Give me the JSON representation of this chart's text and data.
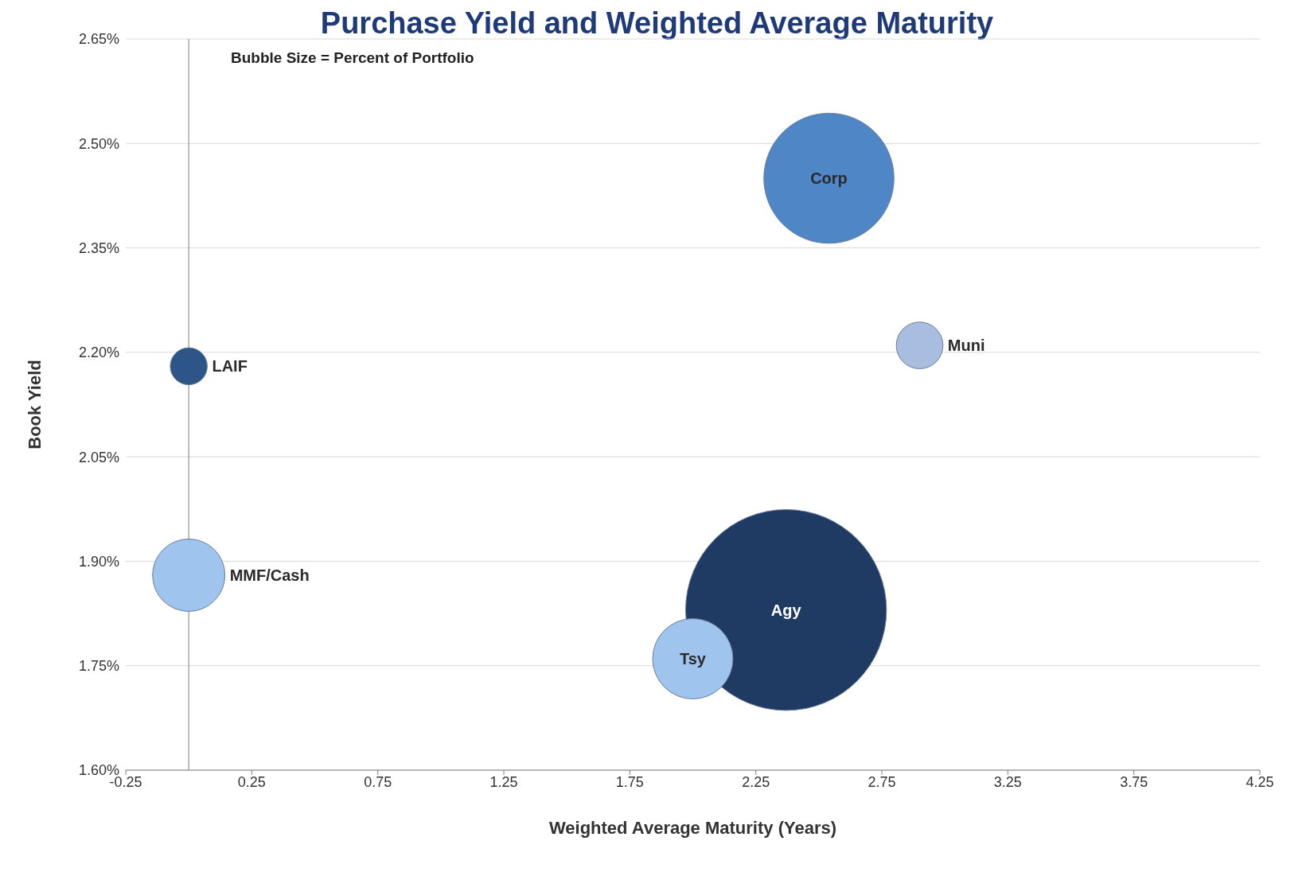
{
  "chart_data": {
    "type": "bubble",
    "title": "Purchase Yield and Weighted Average Maturity",
    "xlabel": "Weighted Average Maturity (Years)",
    "ylabel": "Book Yield",
    "annotations": [
      "Bubble Size = Percent of Portfolio"
    ],
    "series": [
      {
        "name": "LAIF",
        "color": "#2e5588",
        "x": [
          0.0
        ],
        "values": [
          2.18
        ],
        "sizes": [
          0.034
        ]
      },
      {
        "name": "MMF/Cash",
        "color": "#9fc4ee",
        "x": [
          0.0
        ],
        "values": [
          1.88
        ],
        "sizes": [
          0.13
        ]
      },
      {
        "name": "Corp",
        "color": "#4f86c6",
        "x": [
          2.54
        ],
        "values": [
          2.45
        ],
        "sizes": [
          0.42
        ]
      },
      {
        "name": "Muni",
        "color": "#a9bde0",
        "x": [
          2.9
        ],
        "values": [
          2.21
        ],
        "sizes": [
          0.054
        ]
      },
      {
        "name": "Agy",
        "color": "#1f3a63",
        "x": [
          2.37
        ],
        "values": [
          1.83
        ],
        "sizes": [
          1
        ]
      },
      {
        "name": "Tsy",
        "color": "#9fc4ee",
        "x": [
          2.0
        ],
        "values": [
          1.76
        ],
        "sizes": [
          0.16
        ]
      }
    ],
    "xlim": [
      -0.25,
      4.25
    ],
    "xticks": [
      -0.25,
      0.25,
      0.75,
      1.25,
      1.75,
      2.25,
      2.75,
      3.25,
      3.75,
      4.25
    ],
    "ylim": [
      1.6,
      2.65
    ],
    "yticks": [
      {
        "value": 1.6,
        "label": "1.60%"
      },
      {
        "value": 1.75,
        "label": "1.75%"
      },
      {
        "value": 1.9,
        "label": "1.90%"
      },
      {
        "value": 2.05,
        "label": "2.05%"
      },
      {
        "value": 2.2,
        "label": "2.20%"
      },
      {
        "value": 2.35,
        "label": "2.35%"
      },
      {
        "value": 2.5,
        "label": "2.50%"
      },
      {
        "value": 2.65,
        "label": "2.65%"
      }
    ],
    "grid": "y",
    "legend": false,
    "ref_lines": [
      {
        "axis": "x",
        "value": 0,
        "color": "#808080"
      }
    ]
  }
}
